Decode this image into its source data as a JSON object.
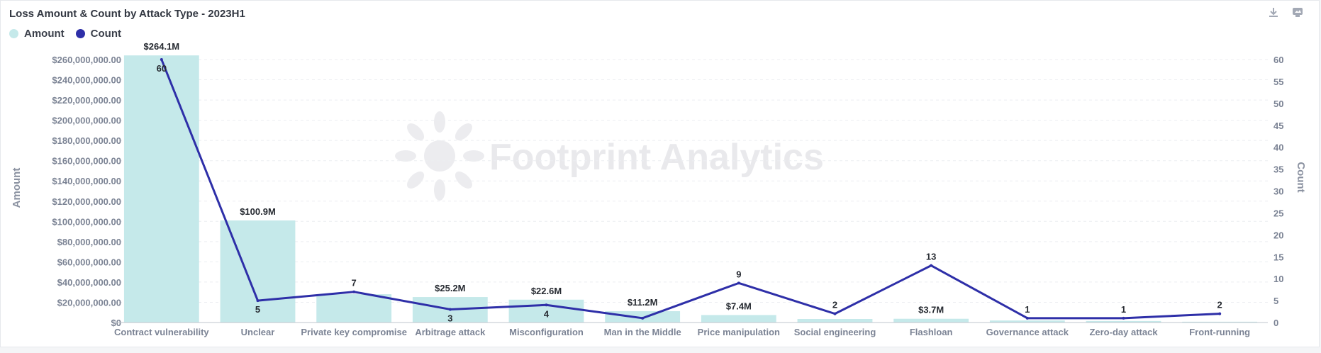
{
  "header": {
    "title": "Loss Amount & Count by Attack Type - 2023H1",
    "download_icon": "download-icon",
    "image_icon": "image-export-icon"
  },
  "legend": [
    {
      "label": "Amount",
      "color": "#c5e9ea"
    },
    {
      "label": "Count",
      "color": "#2e2fa8"
    }
  ],
  "watermark": "Footprint Analytics",
  "chart_data": {
    "type": "bar",
    "title": "Loss Amount & Count by Attack Type - 2023H1",
    "categories": [
      "Contract vulnerability",
      "Unclear",
      "Private key compromise",
      "Arbitrage attack",
      "Misconfiguration",
      "Man in the Middle",
      "Price manipulation",
      "Social engineering",
      "Flashloan",
      "Governance attack",
      "Zero-day attack",
      "Front-running"
    ],
    "series": [
      {
        "name": "Amount",
        "type": "bar",
        "axis": "left",
        "color": "#c5e9ea",
        "values": [
          264100000,
          100900000,
          28000000,
          25200000,
          22600000,
          11200000,
          7400000,
          3500000,
          3700000,
          2000000,
          1500000,
          800000
        ],
        "labels": [
          "$264.1M",
          "$100.9M",
          "",
          "$25.2M",
          "$22.6M",
          "$11.2M",
          "$7.4M",
          "",
          "$3.7M",
          "",
          "",
          ""
        ]
      },
      {
        "name": "Count",
        "type": "line",
        "axis": "right",
        "color": "#2e2fa8",
        "values": [
          60,
          5,
          7,
          3,
          4,
          1,
          9,
          2,
          13,
          1,
          1,
          2
        ],
        "labels": [
          "60",
          "5",
          "7",
          "3",
          "4",
          "",
          "9",
          "2",
          "13",
          "1",
          "1",
          "2"
        ],
        "label_below": [
          true,
          true,
          false,
          true,
          true,
          false,
          false,
          false,
          false,
          false,
          false,
          false
        ]
      }
    ],
    "ylabel": "Amount",
    "y2label": "Count",
    "ylim": [
      0,
      260000000
    ],
    "y2lim": [
      0,
      60
    ],
    "yticks": [
      "$0",
      "$20,000,000.00",
      "$40,000,000.00",
      "$60,000,000.00",
      "$80,000,000.00",
      "$100,000,000.00",
      "$120,000,000.00",
      "$140,000,000.00",
      "$160,000,000.00",
      "$180,000,000.00",
      "$200,000,000.00",
      "$220,000,000.00",
      "$240,000,000.00",
      "$260,000,000.00"
    ],
    "y2ticks": [
      "0",
      "5",
      "10",
      "15",
      "20",
      "25",
      "30",
      "35",
      "40",
      "45",
      "50",
      "55",
      "60"
    ],
    "grid": true,
    "legend_position": "top-left"
  }
}
